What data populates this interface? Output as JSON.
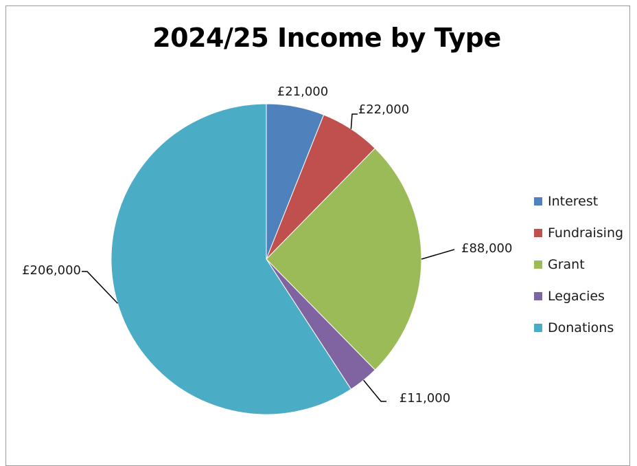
{
  "chart_data": {
    "type": "pie",
    "title": "2024/25 Income by Type",
    "categories": [
      "Interest",
      "Fundraising",
      "Grant",
      "Legacies",
      "Donations"
    ],
    "values": [
      21000,
      22000,
      88000,
      11000,
      206000
    ],
    "data_labels": [
      "£21,000",
      "£22,000",
      "£88,000",
      "£11,000",
      "£206,000"
    ],
    "colors": [
      "#4f81bd",
      "#c0504d",
      "#9bbb59",
      "#8064a2",
      "#4bacc6"
    ],
    "legend_position": "right",
    "start_angle": "12 o'clock",
    "direction": "clockwise"
  }
}
